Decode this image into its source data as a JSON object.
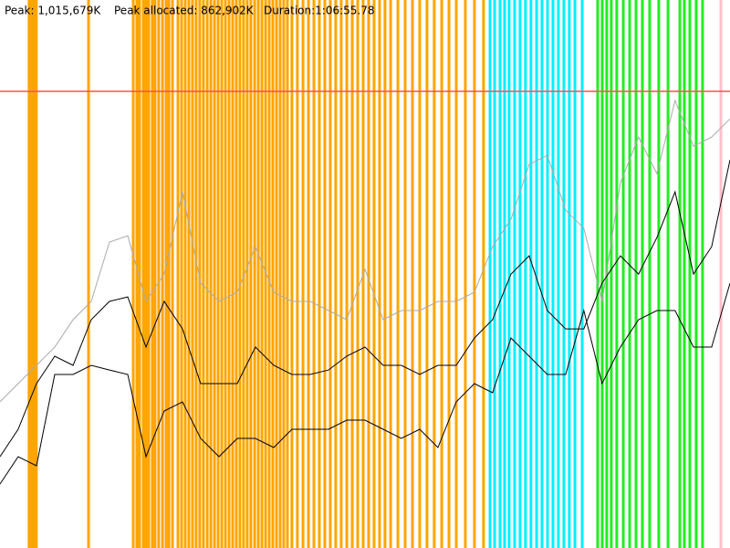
{
  "chart_data": {
    "type": "line",
    "header": [
      "Peak: 1,015,679K",
      "Peak allocated: 862,902K",
      "Duration:1:06:55.78"
    ],
    "xlim": [
      0,
      4016
    ],
    "ylim": [
      0,
      1218815
    ],
    "x": [
      0,
      100,
      201,
      301,
      402,
      502,
      602,
      703,
      803,
      903,
      1004,
      1104,
      1205,
      1305,
      1405,
      1506,
      1606,
      1707,
      1807,
      1907,
      2008,
      2108,
      2208,
      2309,
      2409,
      2510,
      2610,
      2710,
      2811,
      2911,
      3011,
      3112,
      3212,
      3312,
      3413,
      3513,
      3614,
      3714,
      3815,
      3915,
      4016
    ],
    "series": [
      {
        "color": "#aaaaaa",
        "values": [
          325000,
          365600,
          406200,
          446800,
          507800,
          548400,
          680400,
          694600,
          548400,
          609300,
          792100,
          589000,
          548400,
          568700,
          670200,
          568700,
          548400,
          548400,
          528100,
          507800,
          619500,
          507800,
          528100,
          528100,
          548400,
          548400,
          568700,
          670200,
          731200,
          853000,
          873300,
          751500,
          710900,
          548400,
          812400,
          914000,
          832700,
          995200,
          893600,
          914000,
          954600
        ]
      },
      {
        "color": "#000000",
        "values": [
          203100,
          264000,
          365600,
          426500,
          406200,
          507800,
          548400,
          558500,
          446800,
          548400,
          487400,
          365600,
          365600,
          365600,
          446800,
          406200,
          385900,
          385900,
          396000,
          426500,
          446800,
          406200,
          406200,
          385900,
          406200,
          406200,
          467100,
          507800,
          609300,
          649900,
          528100,
          487400,
          487400,
          589000,
          649900,
          609300,
          690500,
          792100,
          609300,
          670200,
          863200
        ]
      },
      {
        "color": "#000000",
        "values": [
          142200,
          203100,
          182800,
          385900,
          385900,
          406200,
          396000,
          385900,
          203100,
          304700,
          325000,
          243700,
          203100,
          243700,
          243700,
          223400,
          264000,
          264000,
          264000,
          284300,
          284300,
          264000,
          243700,
          264000,
          223400,
          325000,
          365600,
          345300,
          467100,
          426500,
          385900,
          385900,
          528100,
          365600,
          446800,
          507800,
          528100,
          528100,
          446800,
          446800,
          589000
        ]
      }
    ],
    "peak_line": {
      "value": 1015679,
      "color": "#ff5050"
    },
    "events": [
      {
        "color": "#ffa500",
        "x": [
          160,
          170,
          180,
          190,
          200,
          487,
          733,
          753,
          768,
          788,
          803,
          818,
          838,
          853,
          873,
          894,
          914,
          929,
          949,
          979,
          999,
          1019,
          1039,
          1059,
          1079,
          1099,
          1119,
          1140,
          1160,
          1180,
          1200,
          1220,
          1240,
          1260,
          1280,
          1300,
          1320,
          1340,
          1360,
          1380,
          1401,
          1421,
          1441,
          1461,
          1481,
          1501,
          1521,
          1541,
          1561,
          1581,
          1606,
          1636,
          1667,
          1697,
          1727,
          1757,
          1787,
          1817,
          1847,
          1877,
          1908,
          1938,
          1968,
          1998,
          2028,
          2058,
          2088,
          2118,
          2149,
          2189,
          2229,
          2269,
          2309,
          2349,
          2389,
          2430,
          2470,
          2510,
          2560,
          2610,
          2660
        ]
      },
      {
        "color": "#00f0ff",
        "x": [
          2696,
          2721,
          2751,
          2776,
          2801,
          2831,
          2861,
          2891,
          2921,
          2952,
          2982,
          3012,
          3042,
          3072,
          3102,
          3132,
          3163,
          3203
        ]
      },
      {
        "color": "#22ee22",
        "x": [
          3288,
          3313,
          3338,
          3363,
          3393,
          3429,
          3464,
          3499,
          3534,
          3574,
          3624,
          3675,
          3740,
          3765,
          3795,
          3830,
          3865
        ]
      },
      {
        "color": "#ffc0cb",
        "x": [
          3966
        ]
      }
    ]
  }
}
